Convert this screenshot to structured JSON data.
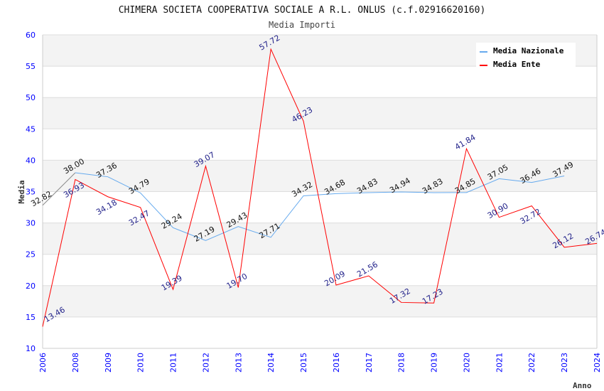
{
  "chart_data": {
    "type": "line",
    "title": "CHIMERA SOCIETA COOPERATIVA SOCIALE A R.L. ONLUS (c.f.02916620160)",
    "subtitle": "Media Importi",
    "xlabel": "Anno",
    "ylabel": "Media",
    "ylim": [
      10,
      60
    ],
    "yticks": [
      10,
      15,
      20,
      25,
      30,
      35,
      40,
      45,
      50,
      55,
      60
    ],
    "categories": [
      "2006",
      "2008",
      "2009",
      "2010",
      "2011",
      "2012",
      "2013",
      "2014",
      "2015",
      "2016",
      "2017",
      "2018",
      "2019",
      "2020",
      "2021",
      "2022",
      "2023",
      "2024"
    ],
    "legend_position": "top-right",
    "series": [
      {
        "name": "Media Nazionale",
        "color": "#66aaee",
        "labels": [
          "32.82",
          "38.00",
          "37.36",
          "34.79",
          "29.24",
          "27.19",
          "29.43",
          "27.71",
          "34.32",
          "34.68",
          "34.83",
          "34.94",
          "34.83",
          "34.85",
          "37.05",
          "36.46",
          "37.49",
          null
        ],
        "values": [
          32.82,
          38.0,
          37.36,
          34.79,
          29.24,
          27.19,
          29.43,
          27.71,
          34.32,
          34.68,
          34.83,
          34.94,
          34.83,
          34.85,
          37.05,
          36.46,
          37.49,
          null
        ]
      },
      {
        "name": "Media Ente",
        "color": "#ff0000",
        "labels": [
          "13.46",
          "36.93",
          "34.18",
          "32.47",
          "19.39",
          "39.07",
          "19.70",
          "57.72",
          "46.23",
          "20.09",
          "21.56",
          "17.32",
          "17.23",
          "41.84",
          "30.90",
          "32.72",
          "26.12",
          "26.74"
        ],
        "values": [
          13.46,
          36.93,
          34.18,
          32.47,
          19.39,
          39.07,
          19.7,
          57.72,
          46.23,
          20.09,
          21.56,
          17.32,
          17.23,
          41.84,
          30.9,
          32.72,
          26.12,
          26.74
        ]
      }
    ]
  }
}
